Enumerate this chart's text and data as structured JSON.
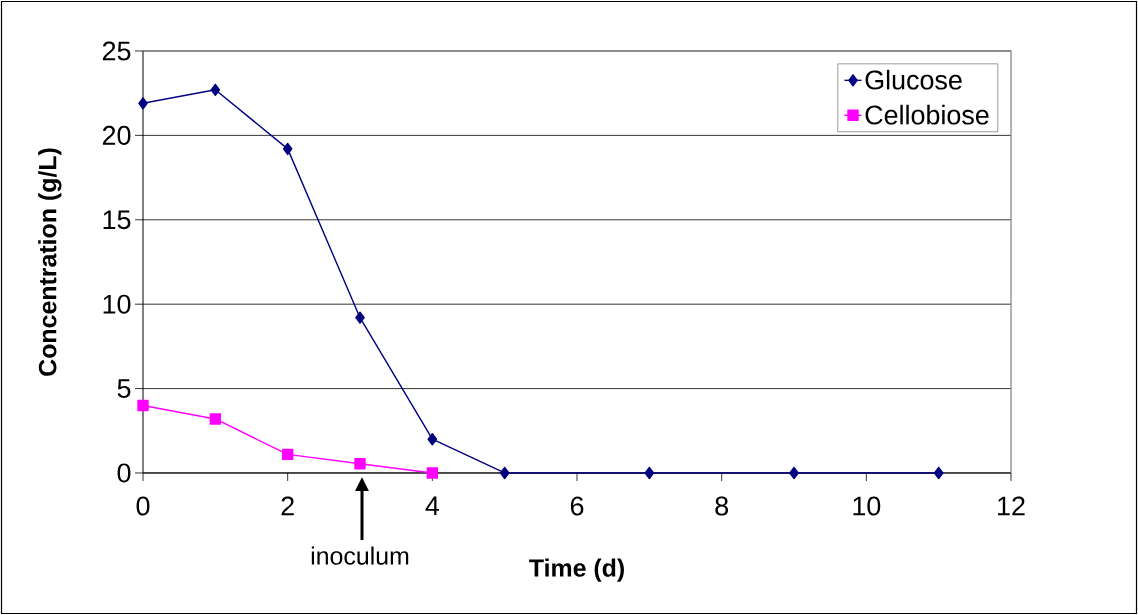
{
  "chart_data": {
    "type": "line",
    "xlabel": "Time (d)",
    "ylabel": "Concentration (g/L)",
    "series": [
      {
        "name": "Glucose",
        "color": "#000080",
        "marker": "diamond",
        "x": [
          0,
          1,
          2,
          3,
          4,
          5,
          7,
          9,
          11
        ],
        "values": [
          21.9,
          22.7,
          19.2,
          9.2,
          2.0,
          0,
          0,
          0,
          0
        ]
      },
      {
        "name": "Cellobiose",
        "color": "#ff00ff",
        "marker": "square",
        "x": [
          0,
          1,
          2,
          3,
          4
        ],
        "values": [
          4.0,
          3.2,
          1.1,
          0.55,
          0
        ]
      }
    ],
    "xlim": [
      0,
      12
    ],
    "xticks": [
      0,
      2,
      4,
      6,
      8,
      10,
      12
    ],
    "ylim": [
      0,
      25
    ],
    "yticks": [
      0,
      5,
      10,
      15,
      20,
      25
    ],
    "grid": "y",
    "legend": "top right",
    "line_style": "solid",
    "annotations": [
      "inoculum"
    ]
  }
}
